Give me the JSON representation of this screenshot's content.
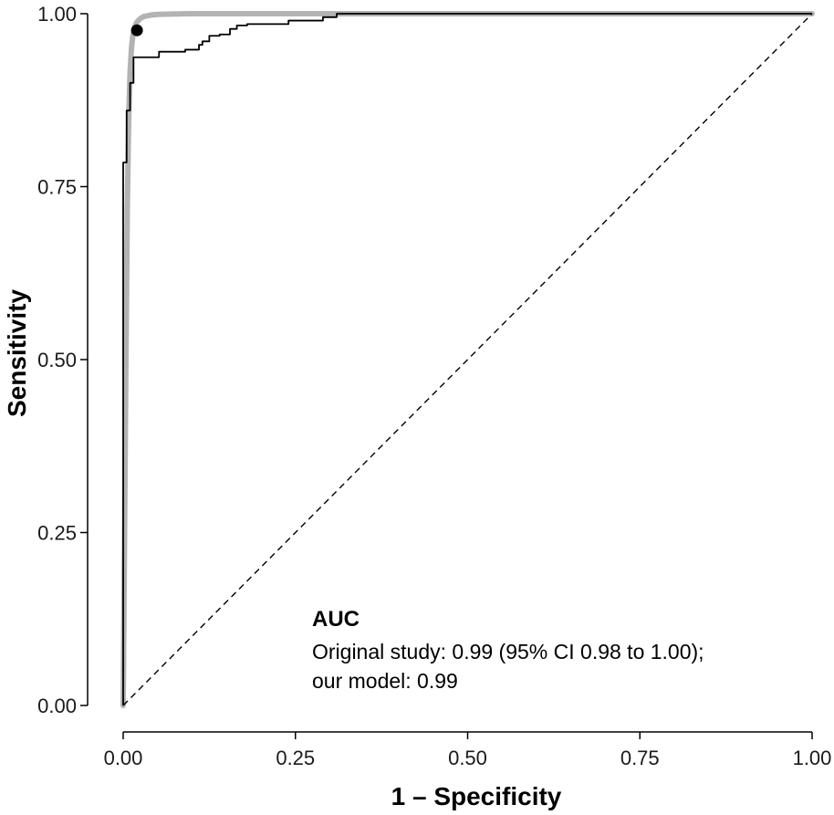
{
  "chart_data": {
    "type": "line",
    "title": "",
    "xlabel": "1 – Specificity",
    "ylabel": "Sensitivity",
    "xlim": [
      0,
      1
    ],
    "ylim": [
      0,
      1
    ],
    "xticks": [
      0,
      0.25,
      0.5,
      0.75,
      1
    ],
    "yticks": [
      0,
      0.25,
      0.5,
      0.75,
      1
    ],
    "xtick_labels": [
      "0.00",
      "0.25",
      "0.50",
      "0.75",
      "1.00"
    ],
    "ytick_labels": [
      "0.00",
      "0.25",
      "0.50",
      "0.75",
      "1.00"
    ],
    "grid": false,
    "series": [
      {
        "name": "Original study",
        "color": "#b3b3b3",
        "style": "solid-thick",
        "x": [
          0,
          0.002,
          0.004,
          0.006,
          0.008,
          0.01,
          0.012,
          0.014,
          0.016,
          0.018,
          0.02,
          0.025,
          0.03,
          0.04,
          0.05,
          0.07,
          0.1,
          0.2,
          0.5,
          1.0
        ],
        "y": [
          0,
          0.25,
          0.5,
          0.72,
          0.85,
          0.915,
          0.95,
          0.968,
          0.978,
          0.984,
          0.988,
          0.993,
          0.996,
          0.998,
          0.999,
          0.9995,
          1.0,
          1.0,
          1.0,
          1.0
        ]
      },
      {
        "name": "Our model",
        "color": "#000000",
        "style": "step",
        "x": [
          0,
          0,
          0.005,
          0.005,
          0.01,
          0.01,
          0.015,
          0.015,
          0.052,
          0.052,
          0.09,
          0.09,
          0.11,
          0.11,
          0.115,
          0.115,
          0.125,
          0.125,
          0.14,
          0.14,
          0.155,
          0.155,
          0.165,
          0.165,
          0.18,
          0.18,
          0.24,
          0.24,
          0.29,
          0.29,
          0.31,
          0.31,
          1.0
        ],
        "y": [
          0,
          0.785,
          0.785,
          0.86,
          0.86,
          0.9,
          0.9,
          0.937,
          0.937,
          0.945,
          0.945,
          0.948,
          0.948,
          0.955,
          0.955,
          0.96,
          0.96,
          0.968,
          0.968,
          0.97,
          0.97,
          0.978,
          0.978,
          0.983,
          0.983,
          0.985,
          0.985,
          0.99,
          0.99,
          0.995,
          0.995,
          1.0,
          1.0
        ]
      },
      {
        "name": "Reference",
        "color": "#000000",
        "style": "dashed",
        "x": [
          0,
          1
        ],
        "y": [
          0,
          1
        ]
      }
    ],
    "points": [
      {
        "name": "Optimal threshold",
        "x": 0.02,
        "y": 0.976,
        "color": "#000000"
      }
    ],
    "annotation": {
      "title": "AUC",
      "lines": [
        "Original study: 0.99 (95% CI 0.98 to 1.00);",
        "our model: 0.99"
      ]
    }
  }
}
